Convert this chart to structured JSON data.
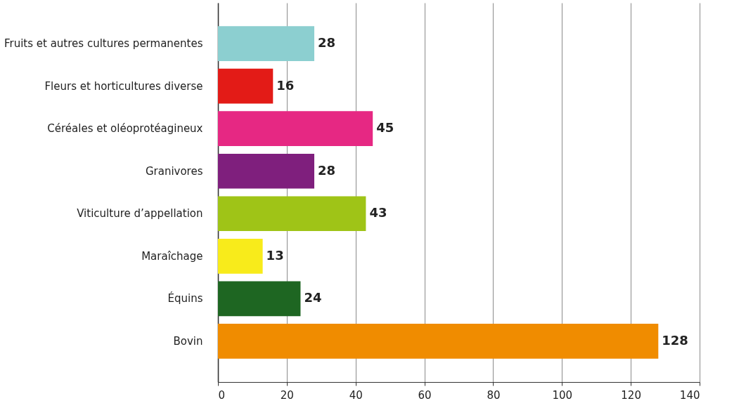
{
  "chart_data": {
    "type": "bar",
    "orientation": "horizontal",
    "categories": [
      "Fruits et autres cultures permanentes",
      "Fleurs et horticultures diverse",
      "Céréales et oléoprotéagineux",
      "Granivores",
      "Viticulture d’appellation",
      "Maraîchage",
      "Équins",
      "Bovin"
    ],
    "values": [
      28,
      16,
      45,
      28,
      43,
      13,
      24,
      128
    ],
    "colors": [
      "#8ccfd0",
      "#e31b17",
      "#e62883",
      "#7f1f7d",
      "#9fc417",
      "#f8eb1b",
      "#1e6622",
      "#f08c00"
    ],
    "xlim": [
      0,
      140
    ],
    "xticks": [
      0,
      20,
      40,
      60,
      80,
      100,
      120,
      140
    ],
    "grid": "x",
    "data_labels": true
  }
}
